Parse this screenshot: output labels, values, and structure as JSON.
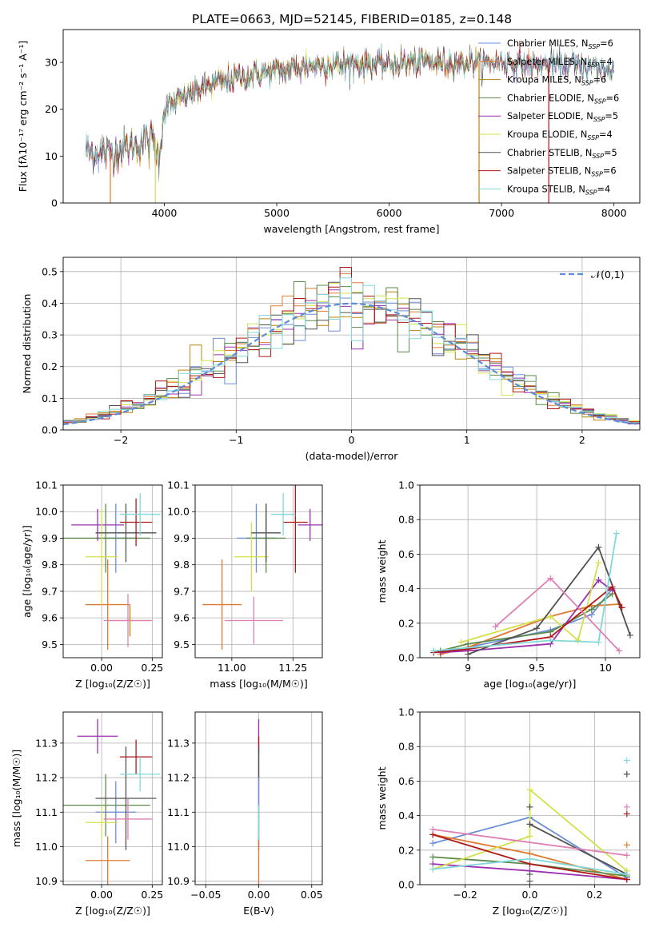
{
  "figure_title": "PLATE=0663, MJD=52145, FIBERID=0185, z=0.148",
  "models": [
    {
      "name": "Chabrier MILES",
      "n": "6",
      "color": "#6a8fd8"
    },
    {
      "name": "Salpeter MILES",
      "n": "4",
      "color": "#e07a30"
    },
    {
      "name": "Kroupa MILES",
      "n": "6",
      "color": "#b8860b"
    },
    {
      "name": "Chabrier ELODIE",
      "n": "6",
      "color": "#5a8a4a"
    },
    {
      "name": "Salpeter ELODIE",
      "n": "5",
      "color": "#9b30b0"
    },
    {
      "name": "Kroupa ELODIE",
      "n": "4",
      "color": "#d4e04a"
    },
    {
      "name": "Chabrier STELIB",
      "n": "5",
      "color": "#505050"
    },
    {
      "name": "Salpeter STELIB",
      "n": "6",
      "color": "#b01818"
    },
    {
      "name": "Kroupa STELIB",
      "n": "4",
      "color": "#80d8d8"
    }
  ],
  "chart_data": [
    {
      "id": "spectrum",
      "type": "line",
      "xlabel": "wavelength [Angstrom, rest frame]",
      "ylabel": "Flux [fλ10⁻¹⁷ erg cm⁻² s⁻¹ A⁻¹]",
      "xlim": [
        3100,
        8230
      ],
      "ylim": [
        0,
        37
      ],
      "xticks": [
        4000,
        5000,
        6000,
        7000,
        8000
      ],
      "yticks": [
        0,
        10,
        20,
        30
      ],
      "continuum": {
        "x": [
          3300,
          3500,
          3700,
          3900,
          3950,
          4000,
          4200,
          4400,
          4600,
          4800,
          5000,
          5200,
          5400,
          5600,
          5800,
          6000,
          6200,
          6400,
          6600,
          6800,
          7000,
          7200,
          7400,
          7600,
          7800,
          8000
        ],
        "y": [
          11,
          10.5,
          12,
          14,
          9,
          20,
          23,
          25,
          26.5,
          27.5,
          28,
          29,
          29.5,
          29.5,
          29.5,
          29.5,
          30,
          30,
          30,
          30,
          30,
          29.5,
          29.5,
          29.5,
          29,
          28.5
        ]
      },
      "drop_lines": [
        {
          "x": 3520,
          "y0": 0,
          "y1": 11
        },
        {
          "x": 3920,
          "y0": 0,
          "y1": 14
        },
        {
          "x": 6800,
          "y0": 0,
          "y1": 30
        },
        {
          "x": 7420,
          "y0": 0,
          "y1": 29.5
        }
      ],
      "grid": false,
      "legend": "top-right"
    },
    {
      "id": "residuals",
      "type": "step",
      "xlabel": "(data-model)/error",
      "ylabel": "Normed distribution",
      "xlim": [
        -2.5,
        2.5
      ],
      "ylim": [
        0,
        0.545
      ],
      "xticks": [
        -2,
        -1,
        0,
        1,
        2
      ],
      "xtick_labels": [
        "−2",
        "−1",
        "0",
        "1",
        "2"
      ],
      "yticks": [
        0,
        0.1,
        0.2,
        0.3,
        0.4,
        0.5
      ],
      "reference": {
        "name": "𝒩(0,1)",
        "mu": 0,
        "sigma": 1
      },
      "bin_width": 0.1,
      "grid": true,
      "legend": "top-right"
    },
    {
      "id": "age_vs_Z",
      "type": "errorbar",
      "xlabel": "Z [log₁₀(Z/Z☉)]",
      "ylabel": "age  [log₁₀(age/yr)]",
      "xlim": [
        -0.19,
        0.3
      ],
      "ylim": [
        9.45,
        10.1
      ],
      "xticks": [
        0,
        0.25
      ],
      "xtick_labels": [
        "0.00",
        "0.25"
      ],
      "yticks": [
        9.5,
        9.6,
        9.7,
        9.8,
        9.9,
        10.0,
        10.1
      ],
      "points": [
        {
          "x": 0.07,
          "xerr": 0.1,
          "y": 9.9,
          "yerr": 0.13,
          "c": 0
        },
        {
          "x": 0.03,
          "xerr": 0.11,
          "y": 9.65,
          "yerr": 0.17,
          "c": 1
        },
        {
          "x": 0.14,
          "xerr": 0.1,
          "y": 9.59,
          "yerr": 0.06,
          "c": 2
        },
        {
          "x": 0.02,
          "xerr": 0.22,
          "y": 9.9,
          "yerr": 0.13,
          "c": 3
        },
        {
          "x": -0.02,
          "xerr": 0.13,
          "y": 9.95,
          "yerr": 0.06,
          "c": 4
        },
        {
          "x": 0.0,
          "xerr": 0.08,
          "y": 9.83,
          "yerr": 0.18,
          "c": 5
        },
        {
          "x": 0.12,
          "xerr": 0.15,
          "y": 9.92,
          "yerr": 0.11,
          "c": 6
        },
        {
          "x": 0.17,
          "xerr": 0.08,
          "y": 9.96,
          "yerr": 0.09,
          "c": 7
        },
        {
          "x": 0.19,
          "xerr": 0.1,
          "y": 9.99,
          "yerr": 0.08,
          "c": 8
        },
        {
          "x": 0.13,
          "xerr": 0.12,
          "y": 9.59,
          "yerr": 0.1,
          "c": 9
        }
      ]
    },
    {
      "id": "age_vs_mass",
      "type": "errorbar",
      "xlabel": "mass [log₁₀(M/M☉)]",
      "ylabel": "",
      "xlim": [
        10.85,
        11.37
      ],
      "ylim": [
        9.45,
        10.1
      ],
      "xticks": [
        11.0,
        11.25
      ],
      "xtick_labels": [
        "11.00",
        "11.25"
      ],
      "yticks": [
        9.5,
        9.6,
        9.7,
        9.8,
        9.9,
        10.0,
        10.1
      ],
      "points": [
        {
          "x": 11.1,
          "xerr": 0.08,
          "y": 9.9,
          "yerr": 0.13,
          "c": 0
        },
        {
          "x": 10.96,
          "xerr": 0.08,
          "y": 9.65,
          "yerr": 0.17,
          "c": 1
        },
        {
          "x": 11.14,
          "xerr": 0.08,
          "y": 9.9,
          "yerr": 0.13,
          "c": 3
        },
        {
          "x": 11.32,
          "xerr": 0.05,
          "y": 9.95,
          "yerr": 0.06,
          "c": 4
        },
        {
          "x": 11.08,
          "xerr": 0.07,
          "y": 9.83,
          "yerr": 0.13,
          "c": 5
        },
        {
          "x": 11.14,
          "xerr": 0.06,
          "y": 9.92,
          "yerr": 0.11,
          "c": 6
        },
        {
          "x": 11.26,
          "xerr": 0.05,
          "y": 9.96,
          "yerr": 0.19,
          "c": 7
        },
        {
          "x": 11.21,
          "xerr": 0.05,
          "y": 9.99,
          "yerr": 0.08,
          "c": 8
        },
        {
          "x": 11.09,
          "xerr": 0.12,
          "y": 9.59,
          "yerr": 0.09,
          "c": 9
        }
      ]
    },
    {
      "id": "weight_vs_age",
      "type": "line",
      "xlabel": "age  [log₁₀(age/yr)]",
      "ylabel": "mass weight",
      "xlim": [
        8.65,
        10.25
      ],
      "ylim": [
        0,
        1.0
      ],
      "xticks": [
        9.0,
        9.5,
        10.0
      ],
      "yticks": [
        0,
        0.2,
        0.4,
        0.6,
        0.8,
        1.0
      ],
      "series": [
        {
          "c": 0,
          "x": [
            8.8,
            9.0,
            9.6,
            9.9,
            10.05
          ],
          "y": [
            0.03,
            0.06,
            0.16,
            0.25,
            0.4
          ]
        },
        {
          "c": 1,
          "x": [
            8.8,
            9.0,
            9.6,
            9.9,
            10.1
          ],
          "y": [
            0.02,
            0.06,
            0.24,
            0.3,
            0.31
          ]
        },
        {
          "c": 3,
          "x": [
            8.8,
            9.0,
            9.6,
            9.9,
            10.05
          ],
          "y": [
            0.04,
            0.08,
            0.15,
            0.28,
            0.37
          ]
        },
        {
          "c": 4,
          "x": [
            8.8,
            9.0,
            9.6,
            9.95,
            10.05
          ],
          "y": [
            0.03,
            0.04,
            0.08,
            0.45,
            0.39
          ]
        },
        {
          "c": 5,
          "x": [
            8.95,
            9.6,
            9.8,
            9.95
          ],
          "y": [
            0.09,
            0.24,
            0.1,
            0.55
          ]
        },
        {
          "c": 6,
          "x": [
            9.0,
            9.5,
            9.95,
            10.18
          ],
          "y": [
            0.02,
            0.17,
            0.64,
            0.13
          ]
        },
        {
          "c": 7,
          "x": [
            8.75,
            9.0,
            9.6,
            10.05,
            10.12
          ],
          "y": [
            0.03,
            0.05,
            0.12,
            0.41,
            0.29
          ]
        },
        {
          "c": 8,
          "x": [
            8.75,
            9.6,
            9.95,
            10.08
          ],
          "y": [
            0.04,
            0.1,
            0.09,
            0.72
          ]
        },
        {
          "c": 9,
          "x": [
            9.2,
            9.6,
            10.1
          ],
          "y": [
            0.18,
            0.46,
            0.04
          ]
        }
      ]
    },
    {
      "id": "mass_vs_Z",
      "type": "errorbar",
      "xlabel": "Z [log₁₀(Z/Z☉)]",
      "ylabel": "mass [log₁₀(M/M☉)]",
      "xlim": [
        -0.19,
        0.3
      ],
      "ylim": [
        10.89,
        11.39
      ],
      "xticks": [
        0,
        0.25
      ],
      "xtick_labels": [
        "0.00",
        "0.25"
      ],
      "yticks": [
        10.9,
        11.0,
        11.1,
        11.2,
        11.3
      ],
      "points": [
        {
          "x": 0.07,
          "xerr": 0.1,
          "y": 11.1,
          "yerr": 0.09,
          "c": 0
        },
        {
          "x": 0.03,
          "xerr": 0.11,
          "y": 10.96,
          "yerr": 0.07,
          "c": 1
        },
        {
          "x": 0.02,
          "xerr": 0.22,
          "y": 11.12,
          "yerr": 0.09,
          "c": 3
        },
        {
          "x": -0.02,
          "xerr": 0.1,
          "y": 11.32,
          "yerr": 0.05,
          "c": 4
        },
        {
          "x": 0.0,
          "xerr": 0.08,
          "y": 11.07,
          "yerr": 0.05,
          "c": 5
        },
        {
          "x": 0.12,
          "xerr": 0.15,
          "y": 11.14,
          "yerr": 0.15,
          "c": 6
        },
        {
          "x": 0.17,
          "xerr": 0.08,
          "y": 11.26,
          "yerr": 0.05,
          "c": 7
        },
        {
          "x": 0.19,
          "xerr": 0.1,
          "y": 11.21,
          "yerr": 0.05,
          "c": 8
        },
        {
          "x": 0.13,
          "xerr": 0.12,
          "y": 11.08,
          "yerr": 0.06,
          "c": 9
        }
      ]
    },
    {
      "id": "mass_vs_ebv",
      "type": "errorbar",
      "xlabel": "E(B-V)",
      "ylabel": "",
      "xlim": [
        -0.06,
        0.06
      ],
      "ylim": [
        10.89,
        11.39
      ],
      "xticks": [
        -0.05,
        0,
        0.05
      ],
      "xtick_labels": [
        "−0.05",
        "0.00",
        "0.05"
      ],
      "yticks": [
        10.9,
        11.0,
        11.1,
        11.2,
        11.3
      ],
      "points": [
        {
          "x": 0,
          "xerr": 0,
          "y": 11.32,
          "yerr": 0.05,
          "c": 4
        },
        {
          "x": 0,
          "xerr": 0,
          "y": 11.26,
          "yerr": 0.06,
          "c": 7
        },
        {
          "x": 0,
          "xerr": 0,
          "y": 11.14,
          "yerr": 0.15,
          "c": 6
        },
        {
          "x": 0,
          "xerr": 0,
          "y": 11.1,
          "yerr": 0.1,
          "c": 0
        },
        {
          "x": 0,
          "xerr": 0,
          "y": 10.96,
          "yerr": 0.07,
          "c": 1
        },
        {
          "x": 0,
          "xerr": 0,
          "y": 11.07,
          "yerr": 0.05,
          "c": 8
        }
      ]
    },
    {
      "id": "weight_vs_Z",
      "type": "line",
      "xlabel": "Z [log₁₀(Z/Z☉)]",
      "ylabel": "mass weight",
      "xlim": [
        -0.34,
        0.34
      ],
      "ylim": [
        0,
        1.0
      ],
      "xticks": [
        -0.2,
        0,
        0.2
      ],
      "xtick_labels": [
        "−0.2",
        "0.0",
        "0.2"
      ],
      "yticks": [
        0,
        0.2,
        0.4,
        0.6,
        0.8,
        1.0
      ],
      "series": [
        {
          "c": 0,
          "x": [
            -0.3,
            0,
            0.3
          ],
          "y": [
            0.24,
            0.39,
            0.04
          ]
        },
        {
          "c": 1,
          "x": [
            -0.3,
            0,
            0.3
          ],
          "y": [
            0.29,
            0.18,
            0.03
          ]
        },
        {
          "c": 3,
          "x": [
            -0.3,
            0,
            0.3
          ],
          "y": [
            0.16,
            0.12,
            0.05
          ]
        },
        {
          "c": 4,
          "x": [
            -0.3,
            0,
            0.3
          ],
          "y": [
            0.12,
            0.08,
            0.03
          ]
        },
        {
          "c": 5,
          "x": [
            -0.3,
            0,
            0,
            0.3
          ],
          "y": [
            0.09,
            0.28,
            0.55,
            0.08
          ]
        },
        {
          "c": 6,
          "x": [
            0,
            0.3
          ],
          "y": [
            0.35,
            0.06
          ]
        },
        {
          "c": 7,
          "x": [
            -0.3,
            0,
            0.3
          ],
          "y": [
            0.29,
            0.12,
            0.03
          ]
        },
        {
          "c": 8,
          "x": [
            -0.3,
            0,
            0.3
          ],
          "y": [
            0.09,
            0.15,
            0.06
          ]
        },
        {
          "c": 9,
          "x": [
            -0.3,
            0.3
          ],
          "y": [
            0.32,
            0.17
          ]
        }
      ],
      "markers": [
        {
          "x": 0.3,
          "y": 0.72,
          "c": 8
        },
        {
          "x": 0.3,
          "y": 0.64,
          "c": 6
        },
        {
          "x": 0.3,
          "y": 0.45,
          "c": 9
        },
        {
          "x": 0.3,
          "y": 0.41,
          "c": 7
        },
        {
          "x": 0.3,
          "y": 0.23,
          "c": 1
        },
        {
          "x": 0,
          "y": 0.45,
          "c": 6
        },
        {
          "x": 0,
          "y": 0.02,
          "c": 6
        },
        {
          "x": 0,
          "y": 0.06,
          "c": 6
        }
      ]
    }
  ]
}
